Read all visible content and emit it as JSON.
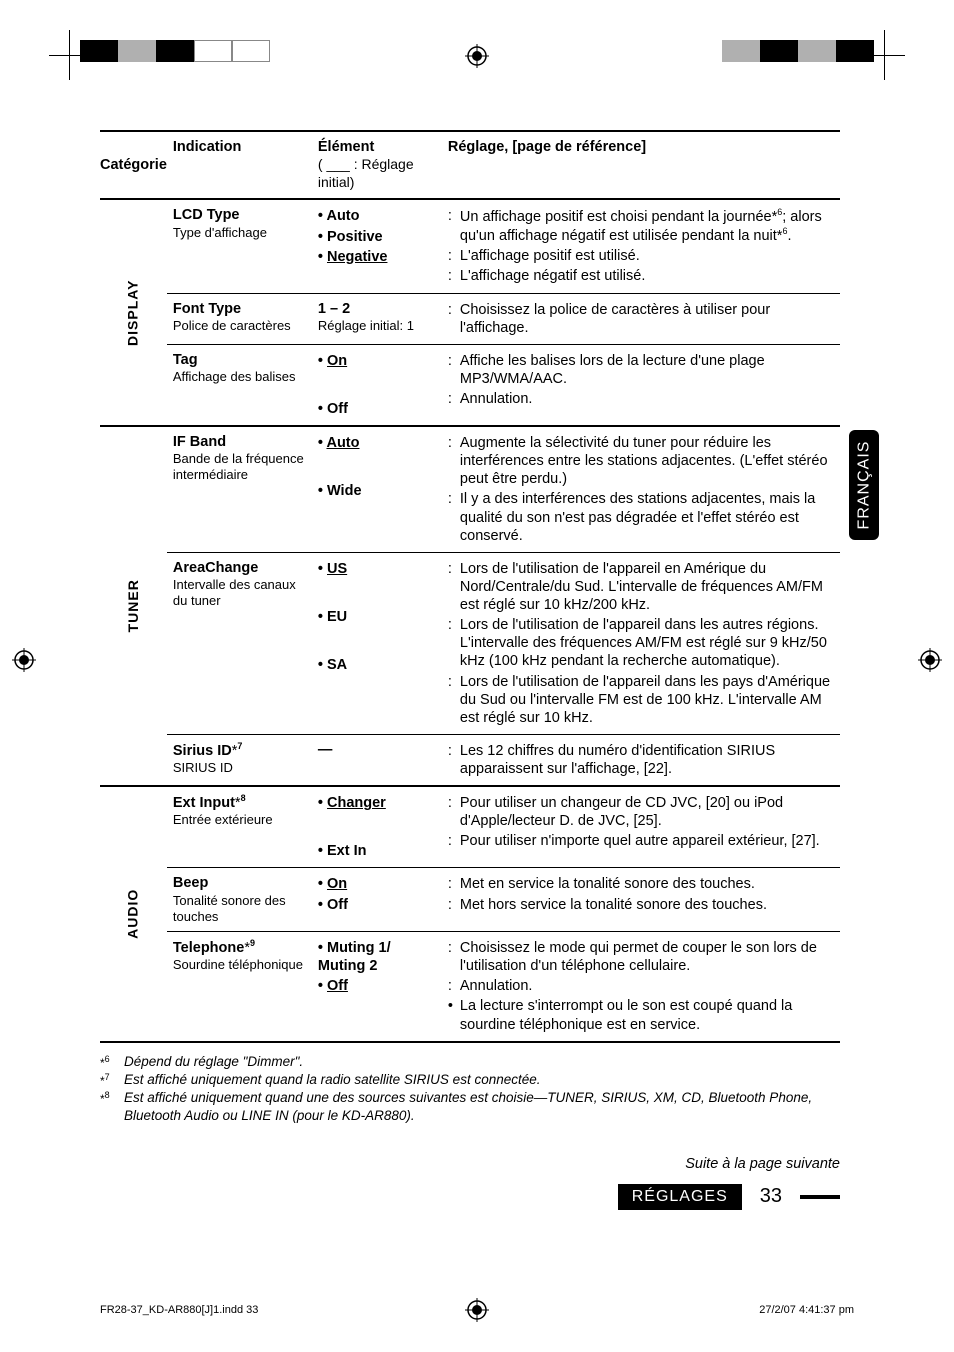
{
  "colors": {
    "bar_left": [
      "#000000",
      "#b0b0b0",
      "#000000",
      "#ffffff",
      "#ffffff"
    ],
    "bar_right": [
      "#b0b0b0",
      "#000000",
      "#b0b0b0",
      "#000000"
    ]
  },
  "side_tab": "FRANÇAIS",
  "header": {
    "cat": "Catégorie",
    "ind": "Indication",
    "elem1": "Élément",
    "elem2": "( ___ : Réglage initial)",
    "reg": "Réglage, [page de référence]"
  },
  "sections": [
    {
      "cat": "DISPLAY",
      "rows": [
        {
          "ind_main": "LCD Type",
          "ind_sub": "Type d'affichage",
          "opts": [
            {
              "label": "Auto",
              "underline": false
            },
            {
              "label": "Positive",
              "underline": false
            },
            {
              "label": "Negative",
              "underline": true
            }
          ],
          "descs": [
            "Un affichage positif est choisi pendant la journée*⁶; alors qu'un affichage négatif est utilisée pendant la nuit*⁶.",
            "L'affichage positif est utilisé.",
            "L'affichage négatif est utilisé."
          ]
        },
        {
          "ind_main": "Font Type",
          "ind_sub": "Police de caractères",
          "elem_main": "1 – 2",
          "elem_sub": "Réglage initial: 1",
          "descs": [
            "Choisissez la police de caractères à utiliser pour l'affichage."
          ]
        },
        {
          "ind_main": "Tag",
          "ind_sub": "Affichage des balises",
          "opts": [
            {
              "label": "On",
              "underline": true
            },
            {
              "label": "Off",
              "underline": false
            }
          ],
          "descs": [
            "Affiche les balises lors de la lecture d'une plage MP3/WMA/AAC.",
            "Annulation."
          ],
          "opt_gap": true
        }
      ]
    },
    {
      "cat": "TUNER",
      "rows": [
        {
          "ind_main": "IF Band",
          "ind_sub": "Bande de la fréquence intermédiaire",
          "opts": [
            {
              "label": "Auto",
              "underline": true
            },
            {
              "label": "Wide",
              "underline": false
            }
          ],
          "descs": [
            "Augmente la sélectivité du tuner pour réduire les interférences entre les stations adjacentes. (L'effet stéréo peut être perdu.)",
            "Il y a des interférences des stations adjacentes, mais la qualité du son n'est pas dégradée et l'effet stéréo est conservé."
          ],
          "opt_gap": true
        },
        {
          "ind_main": "AreaChange",
          "ind_sub": "Intervalle des canaux du tuner",
          "opts": [
            {
              "label": "US",
              "underline": true
            },
            {
              "label": "EU",
              "underline": false
            },
            {
              "label": "SA",
              "underline": false
            }
          ],
          "descs": [
            "Lors de l'utilisation de l'appareil en Amérique du Nord/Centrale/du Sud. L'intervalle de fréquences AM/FM est réglé sur 10 kHz/200 kHz.",
            "Lors de l'utilisation de l'appareil dans les autres régions. L'intervalle des fréquences AM/FM est réglé sur 9 kHz/50 kHz (100 kHz pendant la recherche automatique).",
            "Lors de l'utilisation de l'appareil dans les pays d'Amérique du Sud ou l'intervalle FM est de 100 kHz. L'intervalle AM est réglé sur 10 kHz."
          ],
          "opt_gap": true
        },
        {
          "ind_main_html": "Sirius ID*⁷",
          "ind_sub": "SIRIUS ID",
          "elem_main": "—",
          "descs": [
            "Les 12 chiffres du numéro d'identification SIRIUS apparaissent sur l'affichage, [22]."
          ]
        }
      ]
    },
    {
      "cat": "AUDIO",
      "rows": [
        {
          "ind_main_html": "Ext Input*⁸",
          "ind_sub": "Entrée extérieure",
          "opts": [
            {
              "label": "Changer",
              "underline": true
            },
            {
              "label": "Ext In",
              "underline": false
            }
          ],
          "descs": [
            "Pour utiliser un changeur de CD JVC, [20] ou iPod d'Apple/lecteur D. de JVC, [25].",
            "Pour utiliser n'importe quel autre appareil extérieur, [27]."
          ],
          "opt_gap": true
        },
        {
          "ind_main": "Beep",
          "ind_sub": "Tonalité sonore des touches",
          "opts": [
            {
              "label": "On",
              "underline": true
            },
            {
              "label": "Off",
              "underline": false
            }
          ],
          "descs": [
            "Met en service la tonalité sonore des touches.",
            "Met hors service la tonalité sonore des touches."
          ]
        },
        {
          "ind_main_html": "Telephone*⁹",
          "ind_sub": "Sourdine téléphonique",
          "opts": [
            {
              "label": "Muting 1/ Muting 2",
              "underline": false
            },
            {
              "label": "Off",
              "underline": true
            }
          ],
          "descs_mixed": [
            {
              "type": "colon",
              "text": "Choisissez le mode qui permet de couper le son lors de l'utilisation d'un téléphone cellulaire."
            },
            {
              "type": "colon",
              "text": "Annulation."
            },
            {
              "type": "bullet",
              "text": "La lecture s'interrompt ou le son est coupé quand la sourdine téléphonique est en service."
            }
          ]
        }
      ]
    }
  ],
  "footnotes": [
    {
      "mark": "*6",
      "text": "Dépend du réglage \"Dimmer\"."
    },
    {
      "mark": "*7",
      "text": "Est affiché uniquement quand la radio satellite SIRIUS est connectée."
    },
    {
      "mark": "*8",
      "text": "Est affiché uniquement quand une des sources suivantes est choisie—TUNER, SIRIUS, XM, CD, Bluetooth Phone, Bluetooth Audio ou LINE IN (pour le KD-AR880)."
    }
  ],
  "continue": "Suite à la page suivante",
  "footer": {
    "label": "RÉGLAGES",
    "page": "33"
  },
  "print_footer": {
    "left": "FR28-37_KD-AR880[J]1.indd   33",
    "right": "27/2/07   4:41:37 pm"
  }
}
